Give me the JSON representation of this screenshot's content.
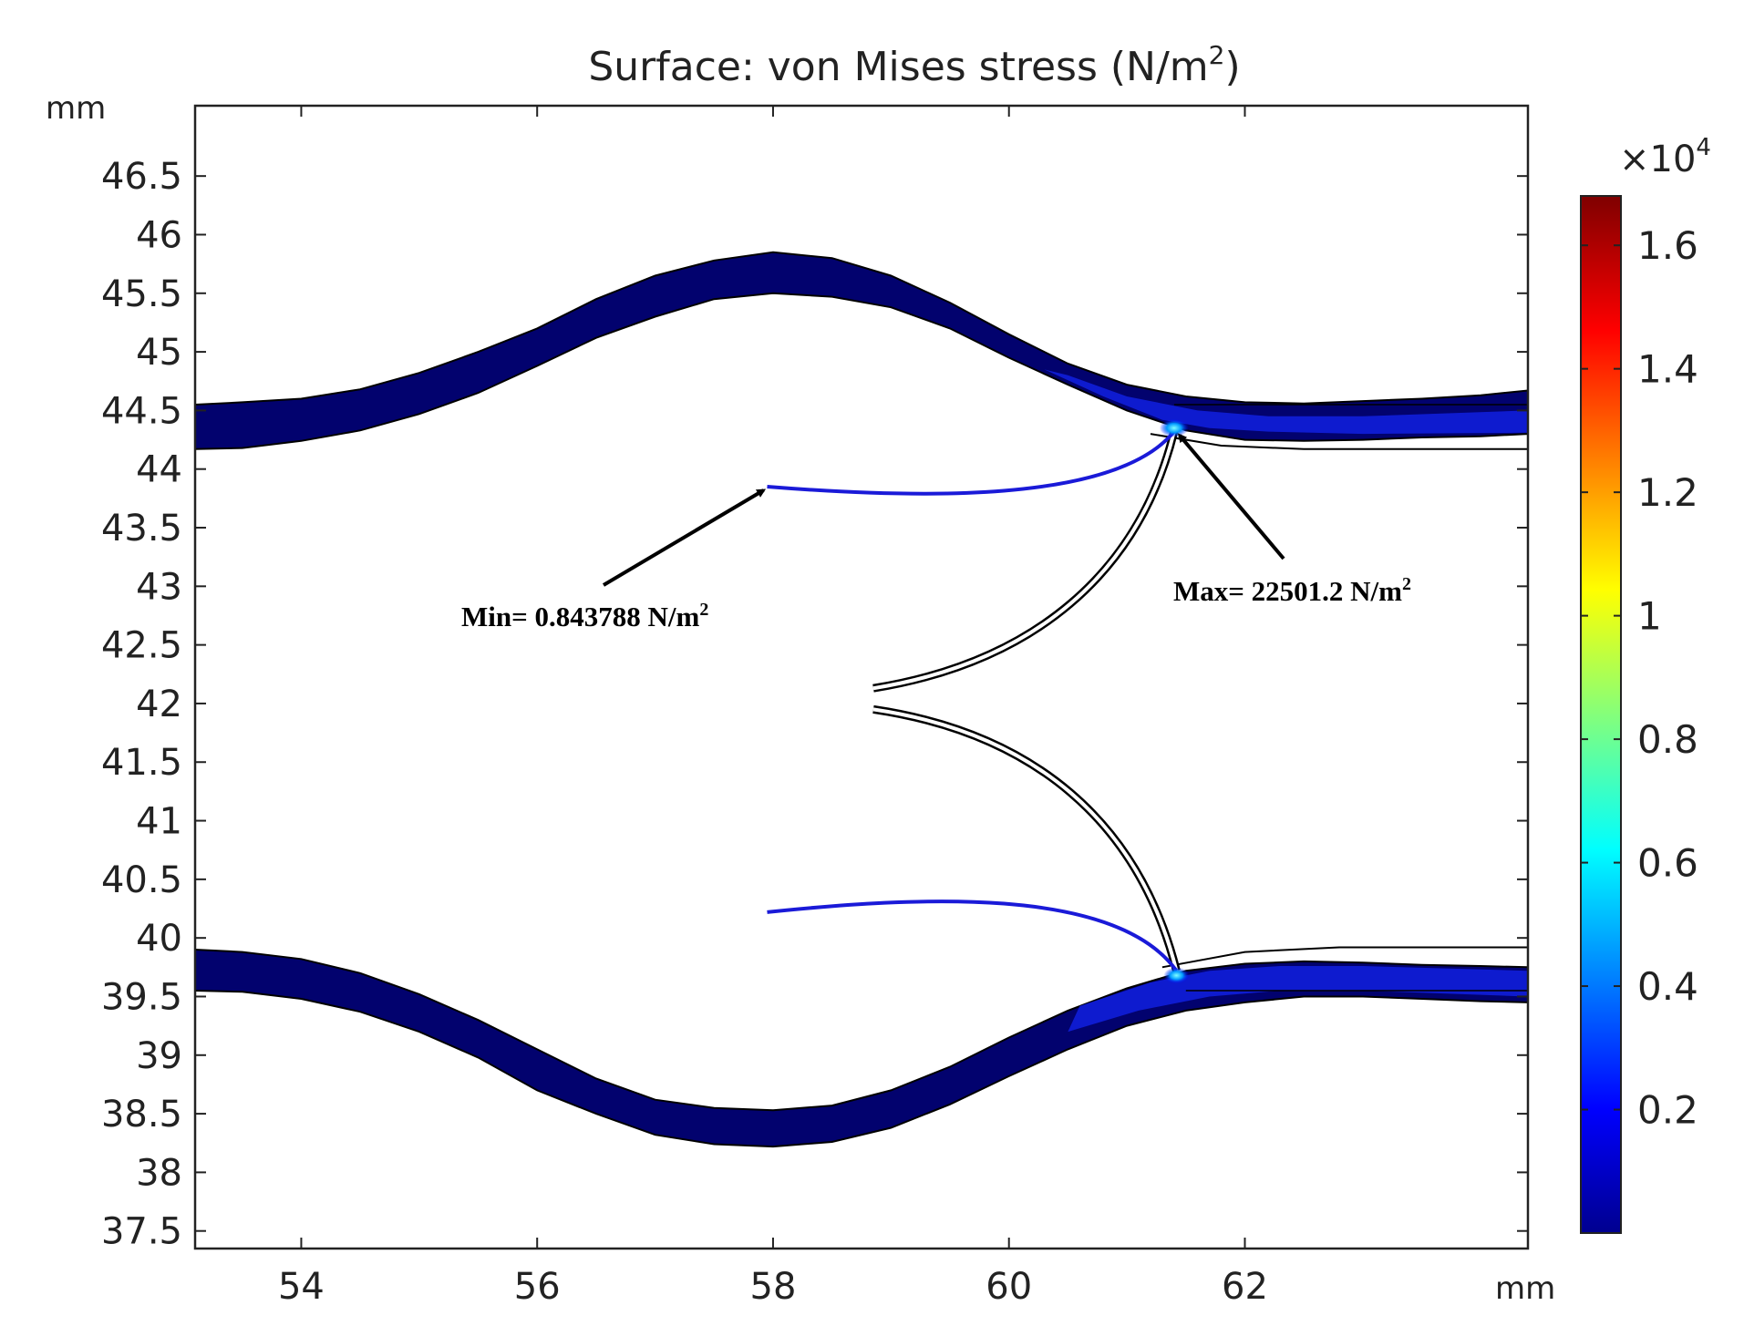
{
  "chart_data": {
    "type": "heatmap",
    "title_main": "Surface: von Mises stress (N/m",
    "title_sup": "2",
    "title_close": ")",
    "x_unit": "mm",
    "y_unit": "mm",
    "xlim": [
      53.1,
      64.4
    ],
    "ylim": [
      37.35,
      47.1
    ],
    "x_ticks": [
      54,
      56,
      58,
      60,
      62
    ],
    "x_tick_labels": [
      "54",
      "56",
      "58",
      "60",
      "62"
    ],
    "y_ticks": [
      37.5,
      38,
      38.5,
      39,
      39.5,
      40,
      40.5,
      41,
      41.5,
      42,
      42.5,
      43,
      43.5,
      44,
      44.5,
      45,
      45.5,
      46,
      46.5
    ],
    "y_tick_labels": [
      "37.5",
      "38",
      "38.5",
      "39",
      "39.5",
      "40",
      "40.5",
      "41",
      "41.5",
      "42",
      "42.5",
      "43",
      "43.5",
      "44",
      "44.5",
      "45",
      "45.5",
      "46",
      "46.5"
    ],
    "colorbar": {
      "range": [
        0,
        16800
      ],
      "multiplier_base": "×10",
      "multiplier_exp": "4",
      "ticks": [
        0.2,
        0.4,
        0.6,
        0.8,
        1,
        1.2,
        1.4,
        1.6
      ],
      "tick_labels": [
        "0.2",
        "0.4",
        "0.6",
        "0.8",
        "1",
        "1.2",
        "1.4",
        "1.6"
      ],
      "colors": [
        "#00008f",
        "#0000ff",
        "#00ffff",
        "#ffff00",
        "#ff0000",
        "#7f0000"
      ]
    },
    "annotations": {
      "min_text": "Min= 0.843788 N/m",
      "min_sup": "2",
      "min_point": [
        57.95,
        43.85
      ],
      "max_text": "Max= 22501.2 N/m",
      "max_sup": "2",
      "max_point": [
        61.4,
        44.35
      ]
    },
    "wall_color": "#02026e",
    "leaflet_color": "#1a1ad8"
  }
}
